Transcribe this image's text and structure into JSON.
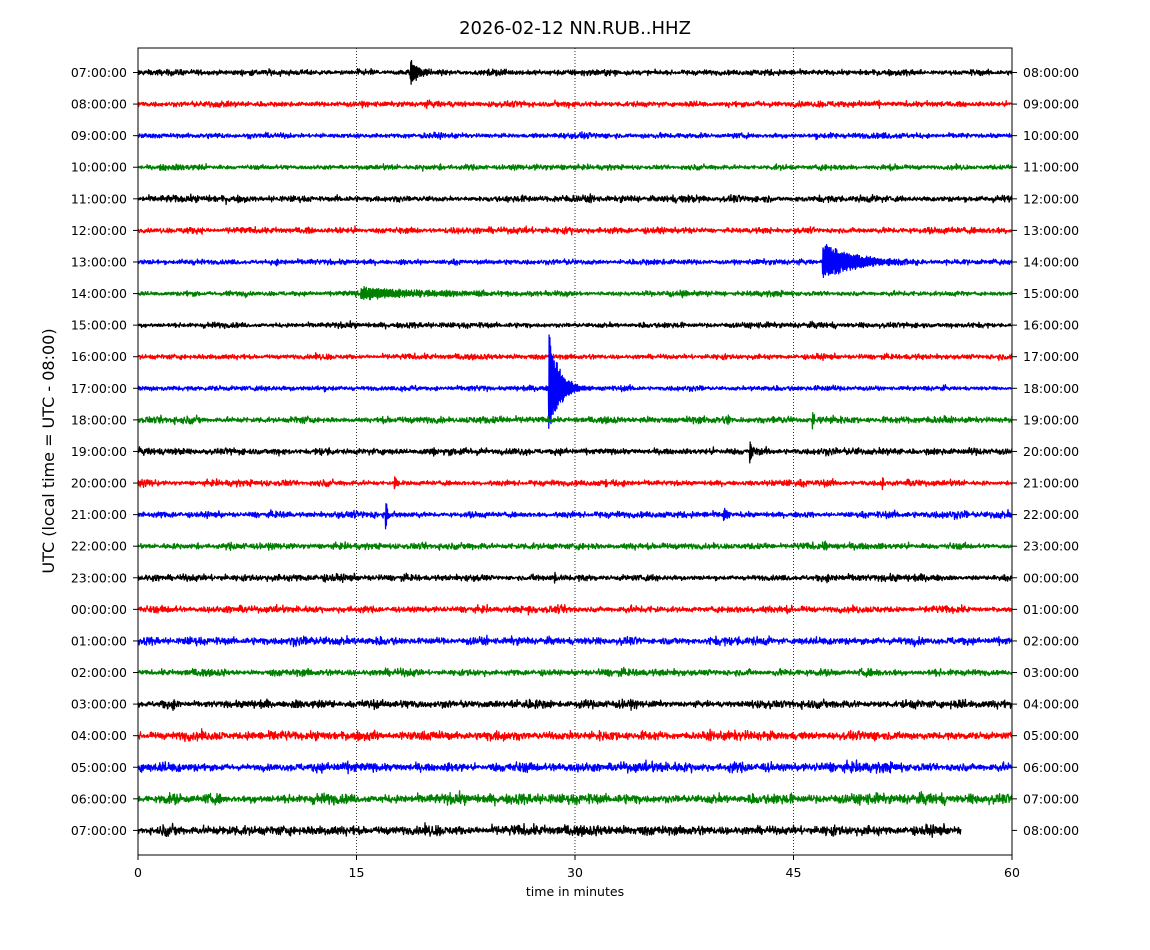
{
  "chart_data": {
    "type": "line",
    "title": "2026-02-12 NN.RUB..HHZ",
    "xlabel": "time in minutes",
    "ylabel": "UTC (local time = UTC - 08:00)",
    "xlim": [
      0,
      60
    ],
    "xticks": [
      "0",
      "15",
      "30",
      "45",
      "60"
    ],
    "xtick_values": [
      0,
      15,
      30,
      45,
      60
    ],
    "grid": "vertical dotted at 15, 30, 45",
    "colors": [
      "#000000",
      "#ff0000",
      "#0000ff",
      "#008000"
    ],
    "rows_left": [
      "07:00:00",
      "08:00:00",
      "09:00:00",
      "10:00:00",
      "11:00:00",
      "12:00:00",
      "13:00:00",
      "14:00:00",
      "15:00:00",
      "16:00:00",
      "17:00:00",
      "18:00:00",
      "19:00:00",
      "20:00:00",
      "21:00:00",
      "22:00:00",
      "23:00:00",
      "00:00:00",
      "01:00:00",
      "02:00:00",
      "03:00:00",
      "04:00:00",
      "05:00:00",
      "06:00:00",
      "07:00:00"
    ],
    "rows_right": [
      "08:00:00",
      "09:00:00",
      "10:00:00",
      "11:00:00",
      "12:00:00",
      "13:00:00",
      "14:00:00",
      "15:00:00",
      "16:00:00",
      "17:00:00",
      "18:00:00",
      "19:00:00",
      "20:00:00",
      "21:00:00",
      "22:00:00",
      "23:00:00",
      "00:00:00",
      "01:00:00",
      "02:00:00",
      "03:00:00",
      "04:00:00",
      "05:00:00",
      "06:00:00",
      "07:00:00",
      "08:00:00"
    ],
    "noise_level": [
      0.09,
      0.09,
      0.08,
      0.08,
      0.1,
      0.09,
      0.08,
      0.08,
      0.08,
      0.08,
      0.08,
      0.1,
      0.1,
      0.09,
      0.1,
      0.1,
      0.1,
      0.1,
      0.12,
      0.1,
      0.12,
      0.14,
      0.14,
      0.15,
      0.15
    ],
    "last_row_end_minute": 56.5,
    "events": [
      {
        "row": 0,
        "minute": 18.7,
        "amplitude": 0.45,
        "decay": 0.6
      },
      {
        "row": 6,
        "minute": 47.0,
        "amplitude": 0.65,
        "decay": 2.5
      },
      {
        "row": 7,
        "minute": 15.3,
        "amplitude": 0.2,
        "decay": 5
      },
      {
        "row": 10,
        "minute": 28.2,
        "amplitude": 1.9,
        "decay": 0.8
      },
      {
        "row": 11,
        "minute": 40.5,
        "amplitude": 0.3,
        "decay": 0.1
      },
      {
        "row": 11,
        "minute": 46.3,
        "amplitude": 0.45,
        "decay": 0.1
      },
      {
        "row": 12,
        "minute": 20.3,
        "amplitude": 0.2,
        "decay": 0.1
      },
      {
        "row": 12,
        "minute": 42.0,
        "amplitude": 0.45,
        "decay": 0.15
      },
      {
        "row": 13,
        "minute": 17.6,
        "amplitude": 0.28,
        "decay": 0.2
      },
      {
        "row": 13,
        "minute": 32.1,
        "amplitude": 0.22,
        "decay": 0.1
      },
      {
        "row": 13,
        "minute": 51.1,
        "amplitude": 0.32,
        "decay": 0.1
      },
      {
        "row": 14,
        "minute": 17.0,
        "amplitude": 0.8,
        "decay": 0.1
      },
      {
        "row": 14,
        "minute": 40.2,
        "amplitude": 0.25,
        "decay": 0.3
      },
      {
        "row": 15,
        "minute": 47.1,
        "amplitude": 0.28,
        "decay": 0.15
      },
      {
        "row": 16,
        "minute": 28.6,
        "amplitude": 0.25,
        "decay": 0.1
      },
      {
        "row": 17,
        "minute": 26.8,
        "amplitude": 0.25,
        "decay": 0.1
      }
    ]
  }
}
